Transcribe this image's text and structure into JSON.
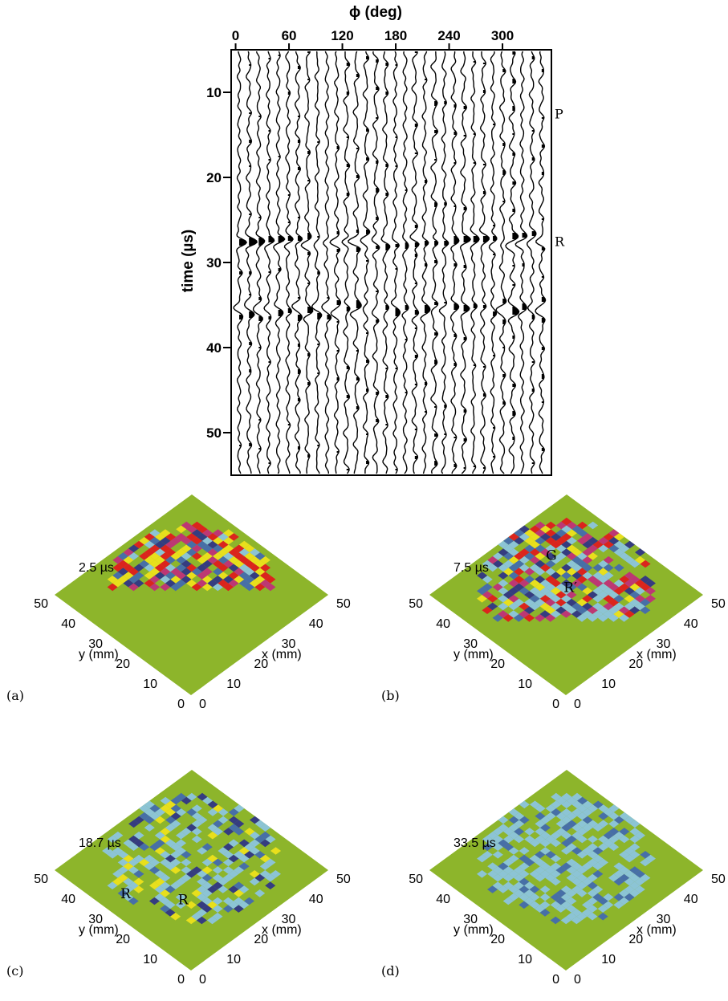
{
  "seismogram": {
    "top_axis_label": "ϕ (deg)",
    "left_axis_label": "time (µs)",
    "x_ticks": [
      0,
      60,
      120,
      180,
      240,
      300
    ],
    "y_ticks": [
      10,
      20,
      30,
      40,
      50
    ],
    "y_range": [
      5,
      55
    ],
    "x_range": [
      -5,
      355
    ],
    "trace_count": 32,
    "arrival_labels": [
      {
        "text": "P",
        "time": 12.5
      },
      {
        "text": "R",
        "time": 27.5
      }
    ]
  },
  "panels": [
    {
      "letter": "(a)",
      "time_label": "2.5 µs",
      "ylabel": "y (mm)",
      "xlabel": "x (mm)",
      "y_ticks": [
        "50",
        "40",
        "30",
        "20",
        "10",
        "0"
      ],
      "x_ticks": [
        "0",
        "10",
        "20",
        "30",
        "40",
        "50"
      ],
      "annotations": []
    },
    {
      "letter": "(b)",
      "time_label": "7.5 µs",
      "ylabel": "y (mm)",
      "xlabel": "x (mm)",
      "y_ticks": [
        "50",
        "40",
        "30",
        "20",
        "10",
        "0"
      ],
      "x_ticks": [
        "0",
        "10",
        "20",
        "30",
        "40",
        "50"
      ],
      "annotations": [
        {
          "text": "G",
          "u": 0.62,
          "v": 0.73
        },
        {
          "text": "R′",
          "u": 0.53,
          "v": 0.5
        }
      ]
    },
    {
      "letter": "(c)",
      "time_label": "18.7 µs",
      "ylabel": "y (mm)",
      "xlabel": "x (mm)",
      "y_ticks": [
        "50",
        "40",
        "30",
        "20",
        "10",
        "0"
      ],
      "x_ticks": [
        "0",
        "10",
        "20",
        "30",
        "40",
        "50"
      ],
      "annotations": [
        {
          "text": "R",
          "u": 0.12,
          "v": 0.6
        },
        {
          "text": "R",
          "u": 0.3,
          "v": 0.36
        }
      ]
    },
    {
      "letter": "(d)",
      "time_label": "33.5 µs",
      "ylabel": "y (mm)",
      "xlabel": "x (mm)",
      "y_ticks": [
        "50",
        "40",
        "30",
        "20",
        "10",
        "0"
      ],
      "x_ticks": [
        "0",
        "10",
        "20",
        "30",
        "40",
        "50"
      ],
      "annotations": []
    }
  ],
  "colors": {
    "surface_green": "#8db52b",
    "red": "#e3141c",
    "magenta": "#c2297c",
    "yellow": "#f2e31b",
    "light_blue": "#8cc5e8",
    "blue": "#3f67b5",
    "dark_blue": "#2b2f8a"
  }
}
